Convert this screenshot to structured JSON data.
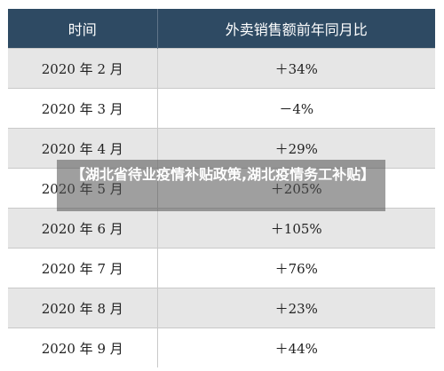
{
  "chart_data": {
    "type": "table",
    "columns": [
      "时间",
      "外卖销售额前年同月比"
    ],
    "rows": [
      [
        "2020 年 2 月",
        "＋34%"
      ],
      [
        "2020 年 3 月",
        "－4%"
      ],
      [
        "2020 年 4 月",
        "＋29%"
      ],
      [
        "2020 年 5 月",
        "＋205%"
      ],
      [
        "2020 年 6 月",
        "＋105%"
      ],
      [
        "2020 年 7 月",
        "＋76%"
      ],
      [
        "2020 年 8 月",
        "＋23%"
      ],
      [
        "2020 年 9 月",
        "＋44%"
      ]
    ],
    "values": [
      34,
      -4,
      29,
      205,
      105,
      76,
      23,
      44
    ],
    "header_color": "#2e4a63",
    "stripe_color": "#e6e6e6"
  },
  "overlay": {
    "text": "【湖北省待业疫情补贴政策,湖北疫情务工补贴】"
  }
}
